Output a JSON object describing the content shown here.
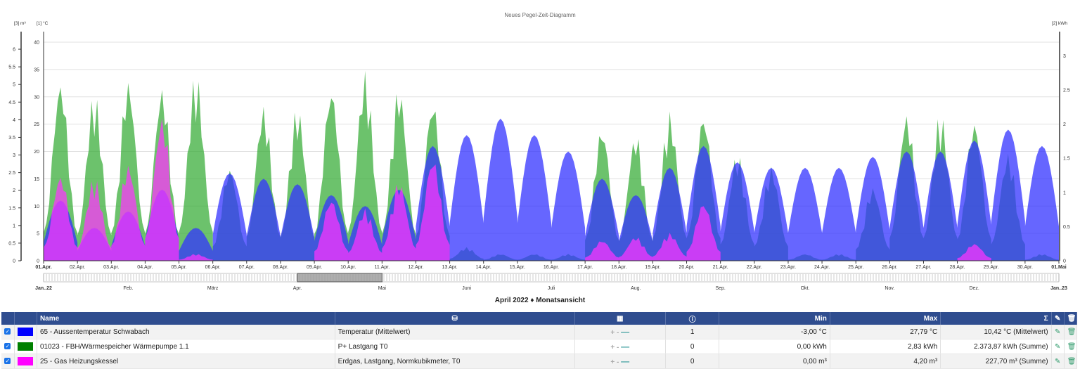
{
  "chart": {
    "title": "Neues Pegel-Zeit-Diagramm",
    "axis_m3_unit": "[3] m³",
    "axis_c_unit": "[1] °C",
    "axis_kwh_unit": "[2] kWh"
  },
  "chart_data": {
    "type": "area",
    "title": "Neues Pegel-Zeit-Diagramm",
    "x_ticks": [
      "01.Apr.",
      "02.Apr.",
      "03.Apr.",
      "04.Apr.",
      "05.Apr.",
      "06.Apr.",
      "07.Apr.",
      "08.Apr.",
      "09.Apr.",
      "10.Apr.",
      "11.Apr.",
      "12.Apr.",
      "13.Apr.",
      "14.Apr.",
      "15.Apr.",
      "16.Apr.",
      "17.Apr.",
      "18.Apr.",
      "19.Apr.",
      "20.Apr.",
      "21.Apr.",
      "22.Apr.",
      "23.Apr.",
      "24.Apr.",
      "25.Apr.",
      "26.Apr.",
      "27.Apr.",
      "28.Apr.",
      "29.Apr.",
      "30.Apr.",
      "01.Mai"
    ],
    "y_left_m3_ticks": [
      "0",
      "0.5",
      "1",
      "1.5",
      "2",
      "2.5",
      "3",
      "3.5",
      "4",
      "4.5",
      "5",
      "5.5",
      "6"
    ],
    "y_left_c_ticks": [
      "0",
      "5",
      "10",
      "15",
      "20",
      "25",
      "30",
      "35",
      "40"
    ],
    "y_right_kwh_ticks": [
      "0",
      "0.5",
      "1",
      "1.5",
      "2",
      "2.5",
      "3"
    ],
    "ylim_c": [
      0,
      40
    ],
    "ylim_kwh": [
      0,
      3.2
    ],
    "ylim_m3": [
      0,
      6.2
    ],
    "series": [
      {
        "name": "65 - Aussentemperatur Schwabach",
        "color": "#3333ff",
        "axis": "°C",
        "daily_peak": [
          11,
          6,
          9,
          13,
          6,
          16,
          15,
          14,
          12,
          10,
          13,
          21,
          23,
          26,
          23,
          20,
          15,
          12,
          17,
          21,
          18,
          17,
          17,
          17,
          19,
          20,
          20,
          22,
          24,
          21
        ]
      },
      {
        "name": "01023 - FBH/Wärmespeicher Wärmepumpe 1.1",
        "color": "#33aa33",
        "axis": "kWh",
        "daily_peak": [
          2.7,
          2.5,
          2.7,
          2.6,
          2.8,
          1.4,
          2.3,
          2.3,
          2.6,
          2.8,
          2.6,
          2.4,
          0.2,
          0.1,
          0.1,
          0.1,
          2.0,
          1.9,
          2.2,
          2.2,
          1.6,
          1.4,
          0.1,
          0.1,
          1.1,
          2.2,
          2.2,
          2.1,
          1.6,
          0.1
        ]
      },
      {
        "name": "25 - Gas Heizungskessel",
        "color": "#ff33ff",
        "axis": "m³",
        "daily_peak": [
          2.5,
          2.4,
          2.8,
          4.2,
          0.2,
          0.0,
          0.0,
          0.0,
          1.8,
          1.5,
          2.3,
          3.0,
          0.0,
          0.0,
          0.0,
          0.0,
          0.6,
          0.7,
          0.8,
          1.7,
          0.0,
          0.0,
          0.0,
          0.0,
          0.0,
          0.0,
          0.0,
          0.5,
          0.0,
          0.0
        ]
      }
    ],
    "navigator_labels": [
      "Jan..22",
      "Feb.",
      "März",
      "Apr.",
      "Mai",
      "Juni",
      "Juli",
      "Aug.",
      "Sep.",
      "Okt.",
      "Nov.",
      "Dez.",
      "Jan..23"
    ],
    "legend": "none"
  },
  "view_label": "April 2022 ♦ Monatsansicht",
  "table": {
    "headers": {
      "name": "Name",
      "min": "Min",
      "max": "Max",
      "sum_icon": "Σ"
    },
    "rows": [
      {
        "color": "#0000ff",
        "name": "65 - Aussentemperatur Schwabach",
        "source": "Temperatur (Mittelwert)",
        "plusminus": "+ -",
        "info": "1",
        "min": "-3,00 °C",
        "max": "27,79 °C",
        "sum": "10,42 °C (Mittelwert)"
      },
      {
        "color": "#008000",
        "name": "01023 - FBH/Wärmespeicher Wärmepumpe 1.1",
        "source": "P+ Lastgang T0",
        "plusminus": "+ -",
        "info": "0",
        "min": "0,00 kWh",
        "max": "2,83 kWh",
        "sum": "2.373,87 kWh (Summe)"
      },
      {
        "color": "#ff00ff",
        "name": "25 - Gas Heizungskessel",
        "source": "Erdgas, Lastgang, Normkubikmeter, T0",
        "plusminus": "+ -",
        "info": "0",
        "min": "0,00 m³",
        "max": "4,20 m³",
        "sum": "227,70 m³ (Summe)"
      }
    ]
  }
}
